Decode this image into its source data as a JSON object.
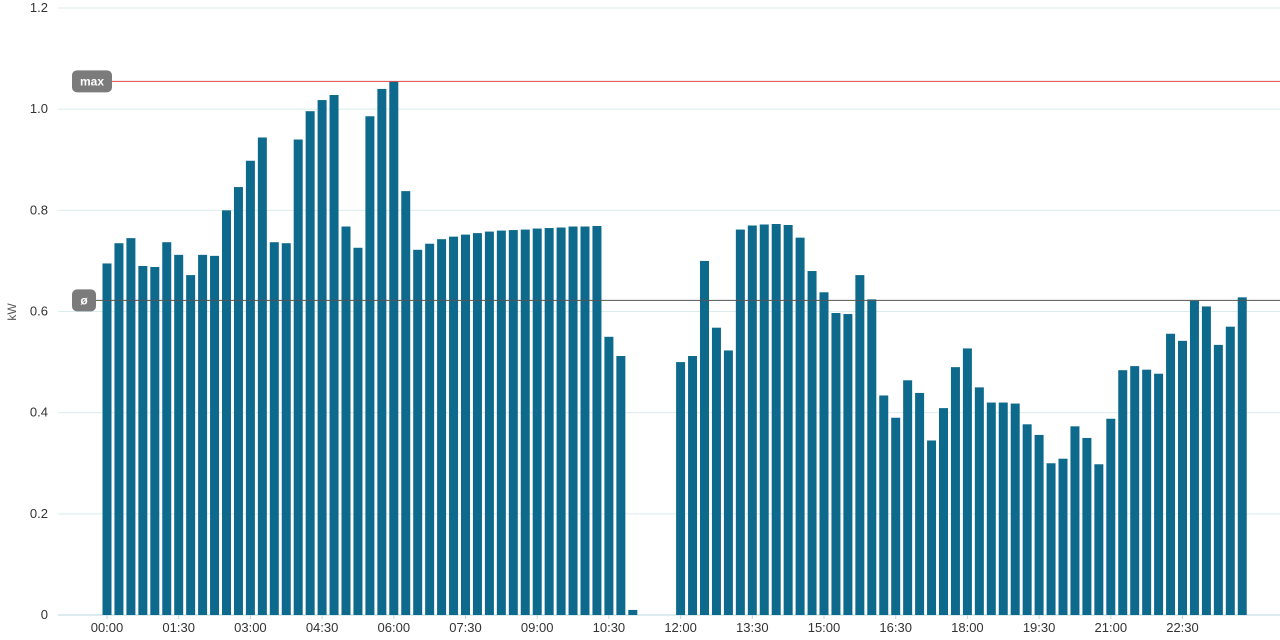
{
  "chart_data": {
    "type": "bar",
    "ylabel": "kW",
    "ylim": [
      0,
      1.2
    ],
    "yticks": [
      {
        "value": 0,
        "label": "0"
      },
      {
        "value": 0.2,
        "label": "0.2"
      },
      {
        "value": 0.4,
        "label": "0.4"
      },
      {
        "value": 0.6,
        "label": "0.6"
      },
      {
        "value": 0.8,
        "label": "0.8"
      },
      {
        "value": 1.0,
        "label": "1.0"
      },
      {
        "value": 1.2,
        "label": "1.2"
      }
    ],
    "grid": true,
    "xticks": [
      "00:00",
      "01:30",
      "03:00",
      "04:30",
      "06:00",
      "07:30",
      "09:00",
      "10:30",
      "12:00",
      "13:30",
      "15:00",
      "16:30",
      "18:00",
      "19:30",
      "21:00",
      "22:30"
    ],
    "interval_minutes": 15,
    "bar_color": "#0e6a8c",
    "values": [
      0.695,
      0.735,
      0.745,
      0.69,
      0.688,
      0.737,
      0.712,
      0.672,
      0.712,
      0.71,
      0.8,
      0.846,
      0.898,
      0.944,
      0.737,
      0.735,
      0.94,
      0.996,
      1.018,
      1.028,
      0.768,
      0.726,
      0.986,
      1.04,
      1.055,
      0.838,
      0.722,
      0.734,
      0.743,
      0.748,
      0.752,
      0.755,
      0.758,
      0.76,
      0.761,
      0.762,
      0.764,
      0.765,
      0.766,
      0.768,
      0.768,
      0.769,
      0.55,
      0.512,
      0.01,
      null,
      null,
      null,
      0.5,
      0.512,
      0.7,
      0.568,
      0.523,
      0.762,
      0.77,
      0.772,
      0.773,
      0.771,
      0.746,
      0.68,
      0.638,
      0.597,
      0.595,
      0.672,
      0.624,
      0.434,
      0.39,
      0.464,
      0.439,
      0.345,
      0.409,
      0.49,
      0.527,
      0.45,
      0.42,
      0.42,
      0.418,
      0.377,
      0.356,
      0.3,
      0.309,
      0.373,
      0.35,
      0.298,
      0.388,
      0.484,
      0.492,
      0.485,
      0.477,
      0.556,
      0.542,
      0.621,
      0.61,
      0.534,
      0.57,
      0.628
    ],
    "reference_lines": [
      {
        "label": "max",
        "value": 1.055,
        "color": "#e04848"
      },
      {
        "label": "ø",
        "value": 0.622,
        "color": "#555555"
      }
    ]
  }
}
